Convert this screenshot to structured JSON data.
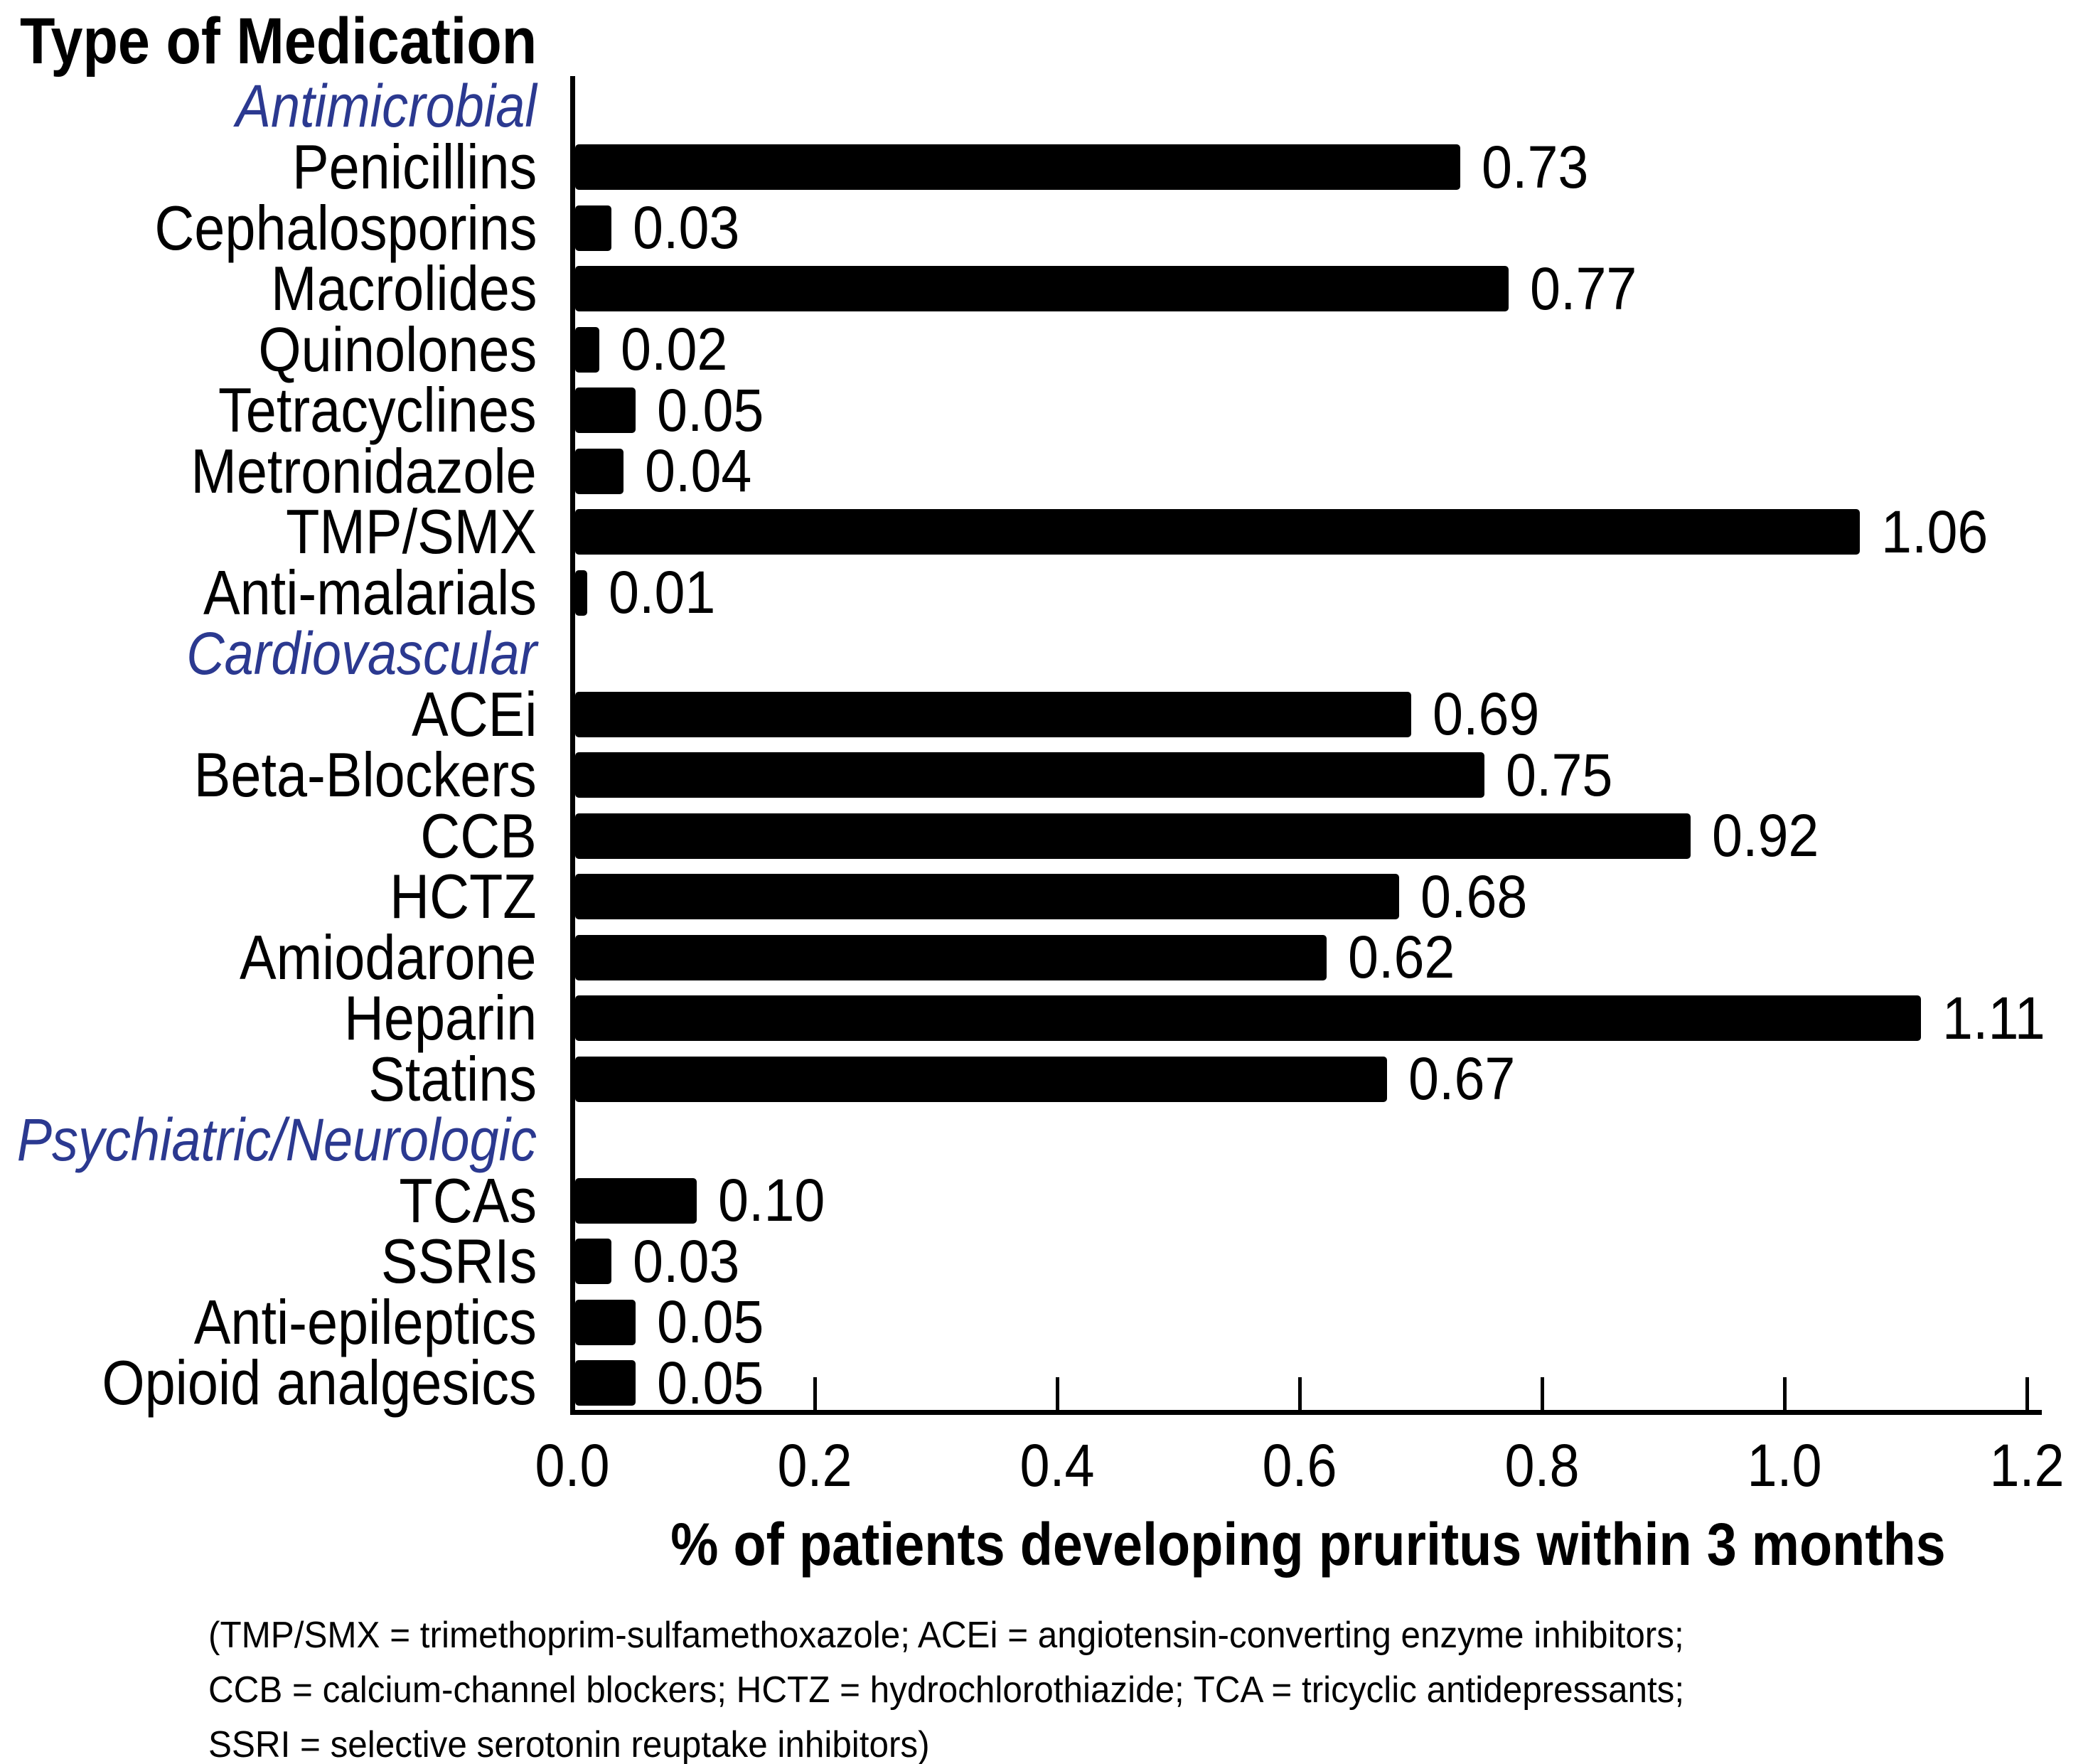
{
  "title": "Type of Medication",
  "axis": {
    "label": "% of patients developing pruritus within 3 months",
    "tick_labels": [
      "0.0",
      "0.2",
      "0.4",
      "0.6",
      "0.8",
      "1.0",
      "1.2"
    ],
    "min": 0.0,
    "max": 1.2
  },
  "footnote": {
    "line1": "(TMP/SMX = trimethoprim-sulfamethoxazole; ACEi = angiotensin-converting enzyme inhibitors;",
    "line2": "CCB = calcium-channel blockers; HCTZ = hydrochlorothiazide; TCA = tricyclic antidepressants;",
    "line3": "SSRI = selective serotonin reuptake inhibitors)"
  },
  "colors": {
    "bar": "#000000",
    "group_header": "#2b3990",
    "text": "#000000",
    "background": "#ffffff"
  },
  "chart_data": {
    "type": "bar",
    "orientation": "horizontal",
    "title": "Type of Medication",
    "xlabel": "% of patients developing pruritus within 3 months",
    "xlim": [
      0.0,
      1.2
    ],
    "xticks": [
      0.0,
      0.2,
      0.4,
      0.6,
      0.8,
      1.0,
      1.2
    ],
    "grid": false,
    "legend": false,
    "value_labels": true,
    "groups": [
      {
        "header": "Antimicrobial",
        "items": [
          {
            "label": "Penicillins",
            "value": 0.73
          },
          {
            "label": "Cephalosporins",
            "value": 0.03
          },
          {
            "label": "Macrolides",
            "value": 0.77
          },
          {
            "label": "Quinolones",
            "value": 0.02
          },
          {
            "label": "Tetracyclines",
            "value": 0.05
          },
          {
            "label": "Metronidazole",
            "value": 0.04
          },
          {
            "label": "TMP/SMX",
            "value": 1.06
          },
          {
            "label": "Anti-malarials",
            "value": 0.01
          }
        ]
      },
      {
        "header": "Cardiovascular",
        "items": [
          {
            "label": "ACEi",
            "value": 0.69
          },
          {
            "label": "Beta-Blockers",
            "value": 0.75
          },
          {
            "label": "CCB",
            "value": 0.92
          },
          {
            "label": "HCTZ",
            "value": 0.68
          },
          {
            "label": "Amiodarone",
            "value": 0.62
          },
          {
            "label": "Heparin",
            "value": 1.11
          },
          {
            "label": "Statins",
            "value": 0.67
          }
        ]
      },
      {
        "header": "Psychiatric/Neurologic",
        "items": [
          {
            "label": "TCAs",
            "value": 0.1
          },
          {
            "label": "SSRIs",
            "value": 0.03
          },
          {
            "label": "Anti-epileptics",
            "value": 0.05
          },
          {
            "label": "Opioid analgesics",
            "value": 0.05
          }
        ]
      }
    ]
  }
}
